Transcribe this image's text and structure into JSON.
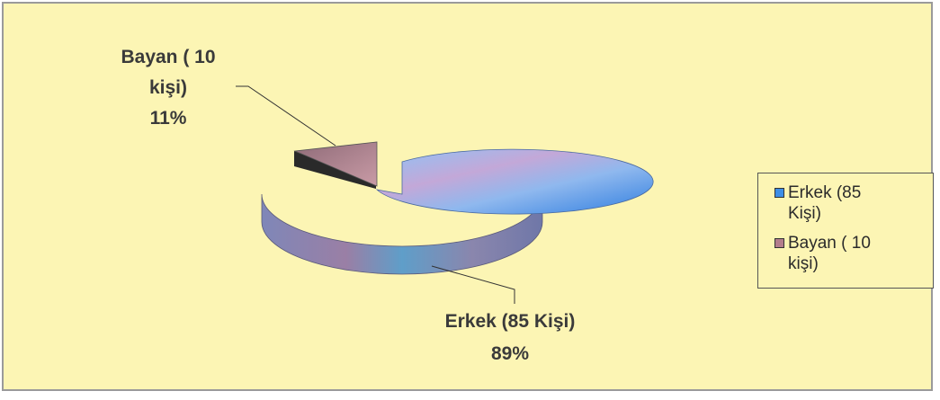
{
  "chart_data": {
    "type": "pie",
    "style": "3d-exploded",
    "title": "",
    "slices": [
      {
        "label": "Erkek (85 Kişi)",
        "value": 85,
        "percent": "89%",
        "color": "#3d8ee6"
      },
      {
        "label": "Bayan ( 10 kişi)",
        "value": 10,
        "percent": "11%",
        "color": "#b37d8c"
      }
    ],
    "data_labels": {
      "erkek": {
        "line1": "Erkek (85 Kişi)",
        "line2": "89%"
      },
      "bayan": {
        "line1": "Bayan ( 10",
        "line2": "kişi)",
        "line3": "11%"
      }
    },
    "legend": {
      "position": "right",
      "items": [
        {
          "line1": "Erkek (85",
          "line2": "Kişi)"
        },
        {
          "line1": "Bayan ( 10",
          "line2": "kişi)"
        }
      ]
    },
    "colors": {
      "background": "#fcf5b4",
      "border": "#9a9a9a",
      "erkek": "#3d8ee6",
      "bayan": "#b37d8c"
    }
  }
}
